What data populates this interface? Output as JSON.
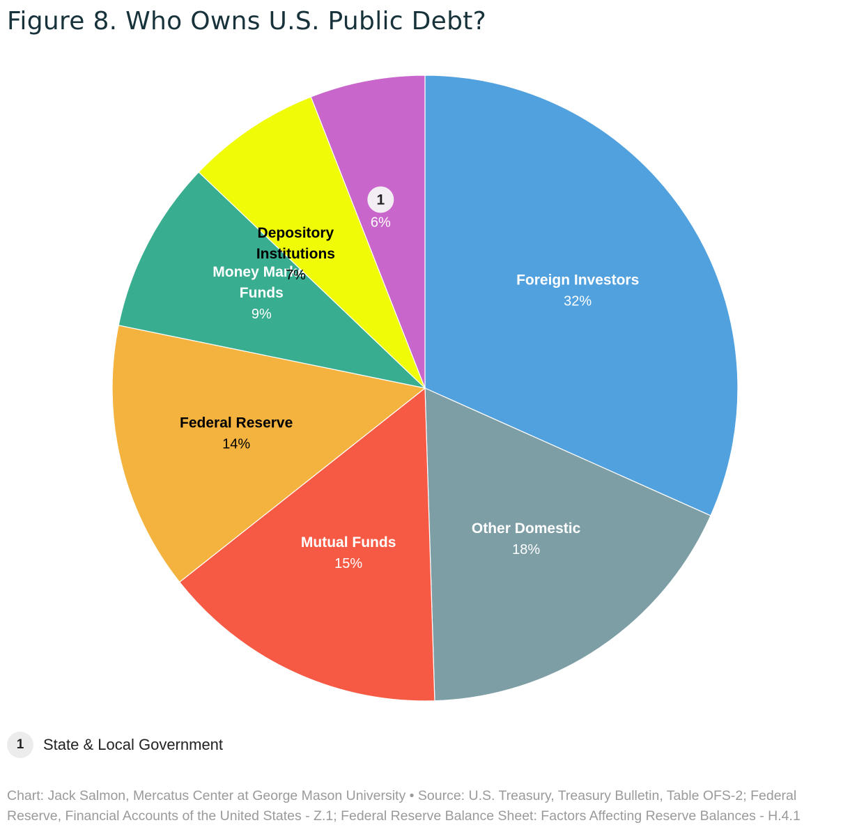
{
  "title": "Figure 8. Who Owns U.S. Public Debt?",
  "chart_data": {
    "type": "pie",
    "start_angle_deg": 0,
    "direction": "clockwise",
    "slices": [
      {
        "name": "Foreign Investors",
        "value": 32,
        "display": "32%",
        "color": "#51a1df",
        "label_color": "#ffffff"
      },
      {
        "name": "Other Domestic",
        "value": 18,
        "display": "18%",
        "color": "#7e9ea6",
        "label_color": "#ffffff"
      },
      {
        "name": "Mutual Funds",
        "value": 15,
        "display": "15%",
        "color": "#f65a44",
        "label_color": "#ffffff"
      },
      {
        "name": "Federal Reserve",
        "value": 14,
        "display": "14%",
        "color": "#f4b33f",
        "label_color": "#000000"
      },
      {
        "name": "Money Market Funds",
        "value": 9,
        "display": "9%",
        "color": "#39ad8f",
        "label_color": "#ffffff",
        "label_lines": [
          "Money Market",
          "Funds"
        ]
      },
      {
        "name": "Depository Institutions",
        "value": 7,
        "display": "7%",
        "color": "#f0fb07",
        "label_color": "#000000",
        "label_lines": [
          "Depository",
          "Institutions"
        ]
      },
      {
        "name": "State & Local Government",
        "value": 6,
        "display": "6%",
        "color": "#c966cc",
        "label_color": "#ffffff",
        "badge": "1"
      }
    ]
  },
  "legend": {
    "badge": "1",
    "label": "State & Local Government"
  },
  "source": "Chart: Jack Salmon, Mercatus Center at George Mason University • Source: U.S. Treasury, Treasury Bulletin, Table OFS-2; Federal Reserve, Financial Accounts of the United States - Z.1; Federal Reserve Balance Sheet: Factors Affecting Reserve Balances - H.4.1"
}
